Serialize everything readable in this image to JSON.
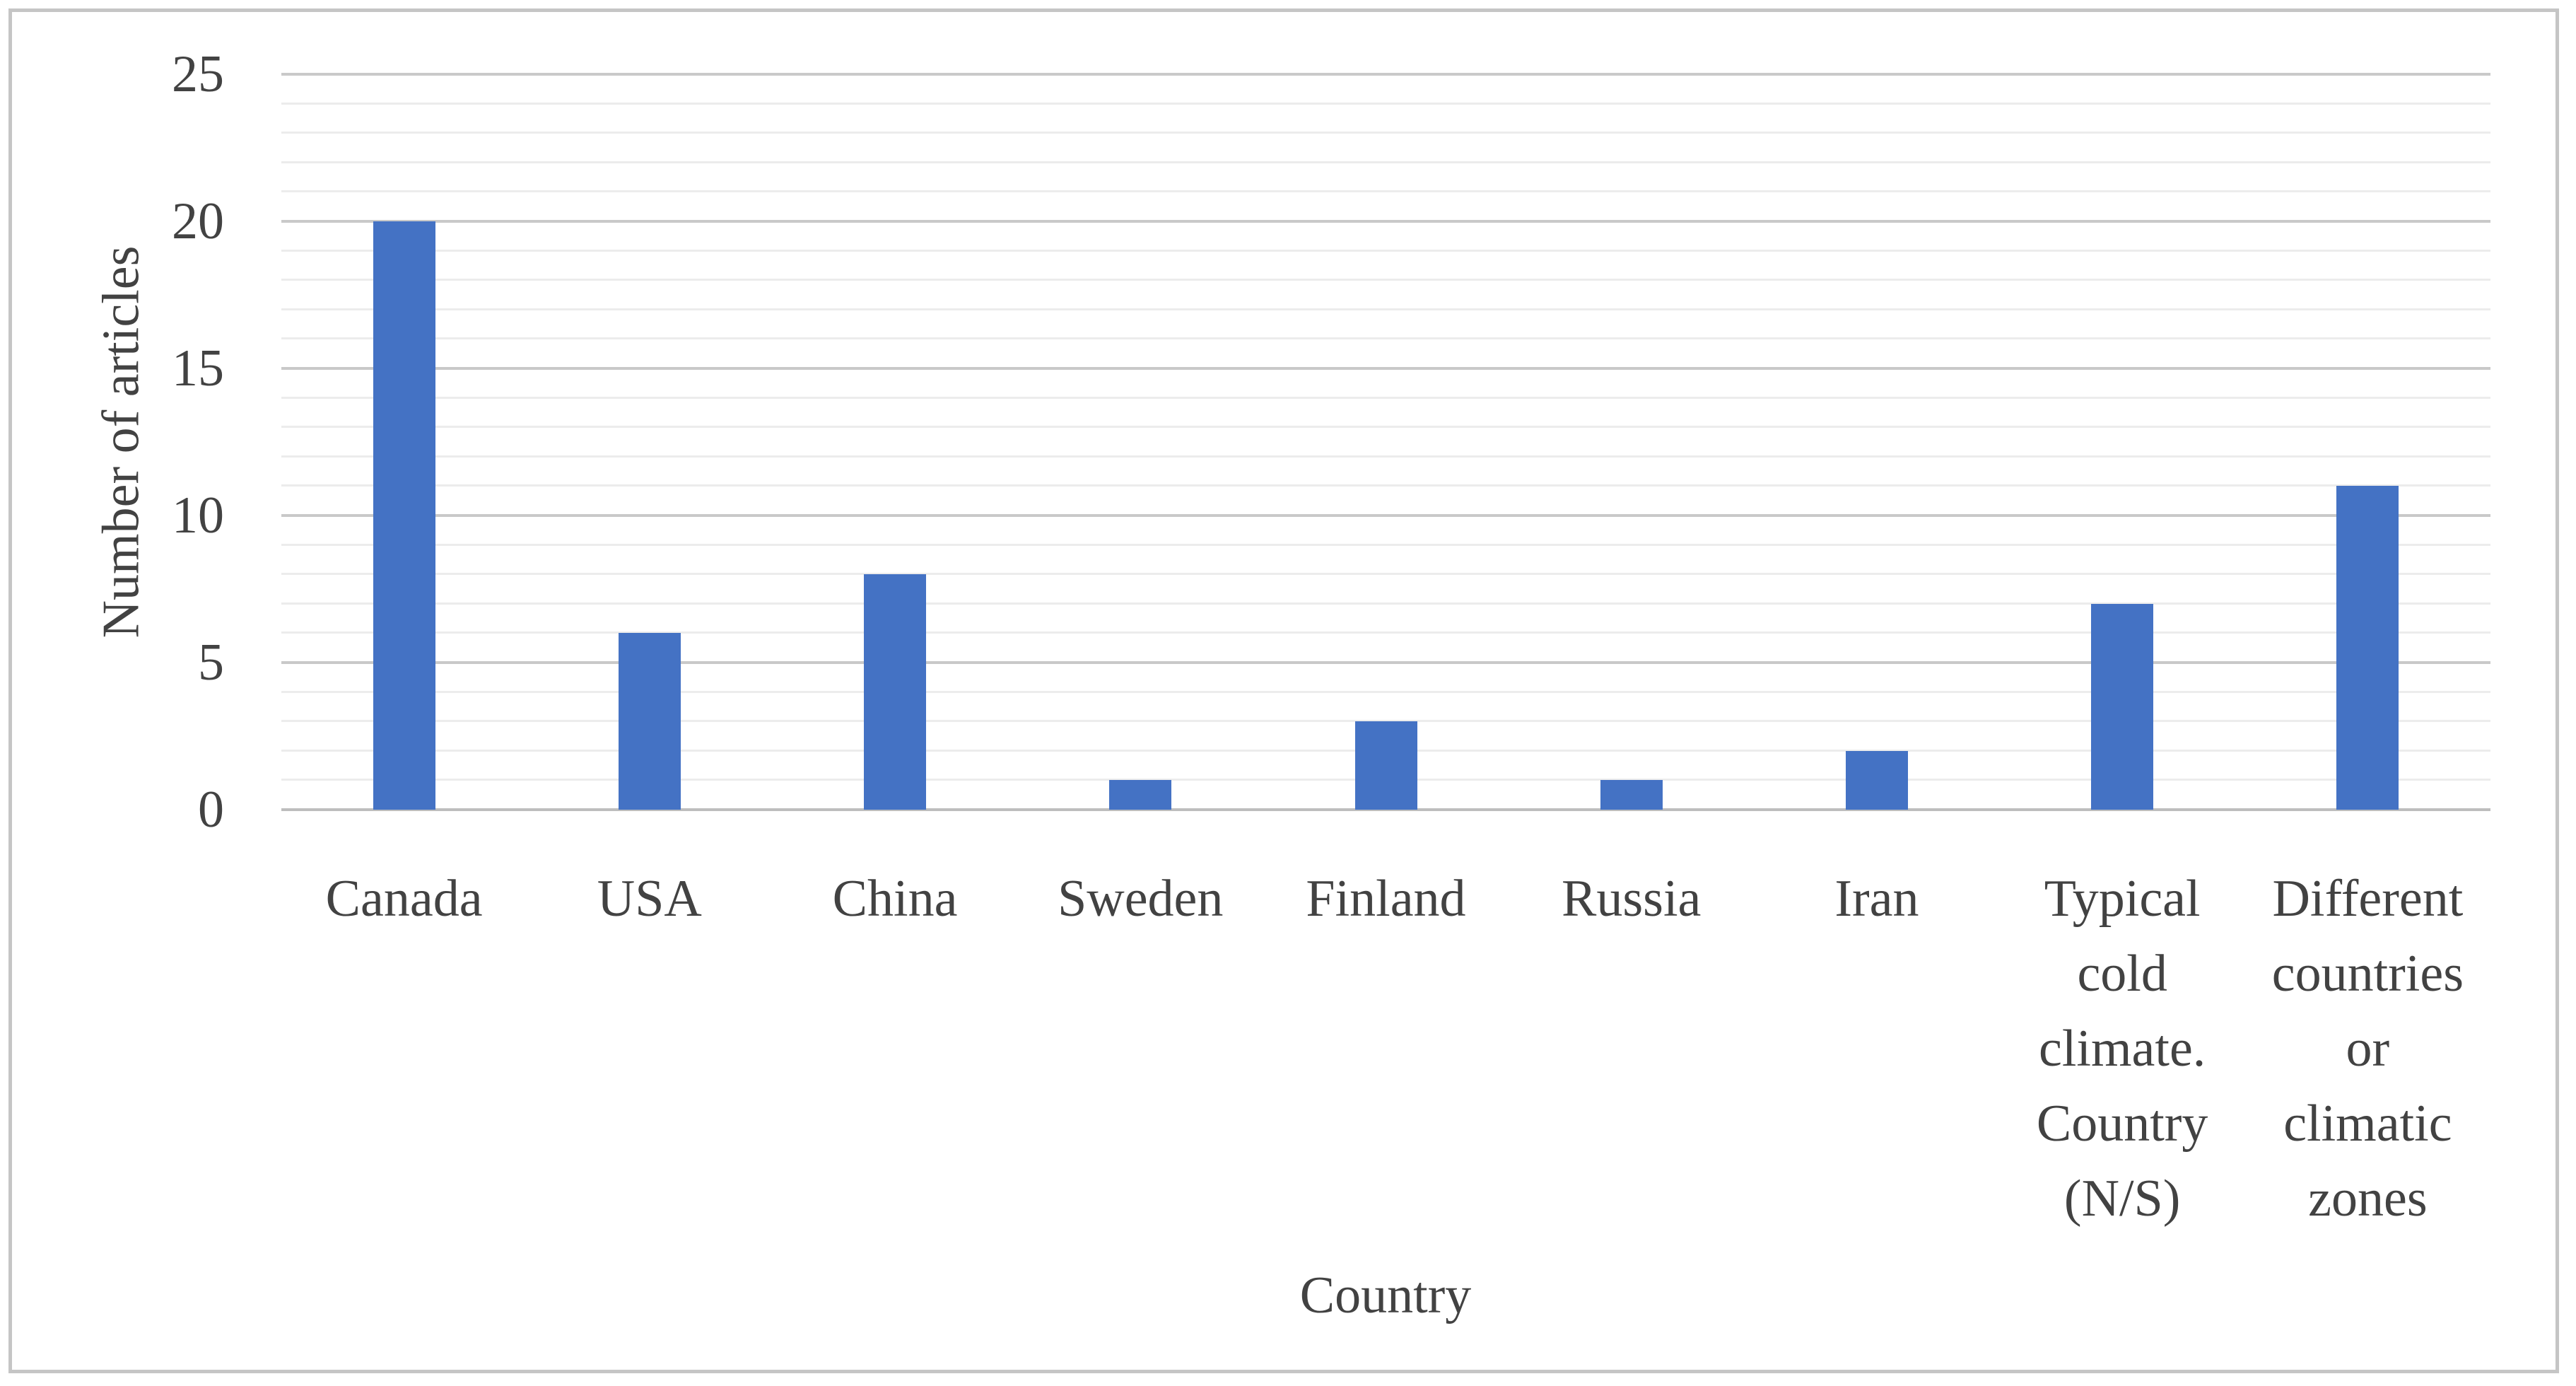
{
  "chart_data": {
    "type": "bar",
    "title": "",
    "xlabel": "Country",
    "ylabel": "Number of articles",
    "categories": [
      "Canada",
      "USA",
      "China",
      "Sweden",
      "Finland",
      "Russia",
      "Iran",
      "Typical cold climate. Country (N/S)",
      "Different countries or climatic zones"
    ],
    "category_label_lines": [
      [
        "Canada"
      ],
      [
        "USA"
      ],
      [
        "China"
      ],
      [
        "Sweden"
      ],
      [
        "Finland"
      ],
      [
        "Russia"
      ],
      [
        "Iran"
      ],
      [
        "Typical",
        "cold",
        "climate.",
        "Country",
        "(N/S)"
      ],
      [
        "Different",
        "countries",
        "or",
        "climatic",
        "zones"
      ]
    ],
    "values": [
      20,
      6,
      8,
      1,
      3,
      1,
      2,
      7,
      11
    ],
    "ylim": [
      0,
      25
    ],
    "y_major_step": 5,
    "y_minor_step": 1,
    "y_tick_labels": [
      "0",
      "5",
      "10",
      "15",
      "20",
      "25"
    ],
    "grid": true,
    "legend": false,
    "colors": {
      "bar": "#4472C4",
      "major_gridline": "#C9C9C9",
      "minor_gridline": "#ECECEC",
      "axis_line": "#BDBDBD",
      "text": "#424242",
      "figure_border": "#C5C5C5"
    }
  }
}
